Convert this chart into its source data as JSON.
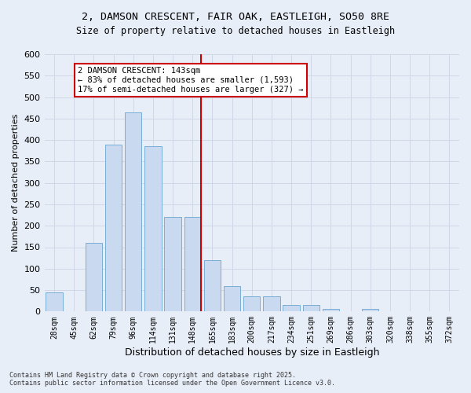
{
  "title_line1": "2, DAMSON CRESCENT, FAIR OAK, EASTLEIGH, SO50 8RE",
  "title_line2": "Size of property relative to detached houses in Eastleigh",
  "xlabel": "Distribution of detached houses by size in Eastleigh",
  "ylabel": "Number of detached properties",
  "bar_labels": [
    "28sqm",
    "45sqm",
    "62sqm",
    "79sqm",
    "96sqm",
    "114sqm",
    "131sqm",
    "148sqm",
    "165sqm",
    "183sqm",
    "200sqm",
    "217sqm",
    "234sqm",
    "251sqm",
    "269sqm",
    "286sqm",
    "303sqm",
    "320sqm",
    "338sqm",
    "355sqm",
    "372sqm"
  ],
  "bar_heights": [
    45,
    0,
    160,
    390,
    465,
    385,
    220,
    220,
    120,
    60,
    35,
    35,
    15,
    15,
    7,
    0,
    7,
    0,
    0,
    0,
    0
  ],
  "bar_color": "#c8d9f0",
  "bar_edge_color": "#7aaed6",
  "grid_color": "#d0d8e8",
  "bg_color": "#e8eef8",
  "vline_x": 7,
  "vline_color": "#cc0000",
  "annotation_title": "2 DAMSON CRESCENT: 143sqm",
  "annotation_line1": "← 83% of detached houses are smaller (1,593)",
  "annotation_line2": "17% of semi-detached houses are larger (327) →",
  "annotation_box_color": "#cc0000",
  "ylim": [
    0,
    600
  ],
  "yticks": [
    0,
    50,
    100,
    150,
    200,
    250,
    300,
    350,
    400,
    450,
    500,
    550,
    600
  ],
  "footer_line1": "Contains HM Land Registry data © Crown copyright and database right 2025.",
  "footer_line2": "Contains public sector information licensed under the Open Government Licence v3.0."
}
